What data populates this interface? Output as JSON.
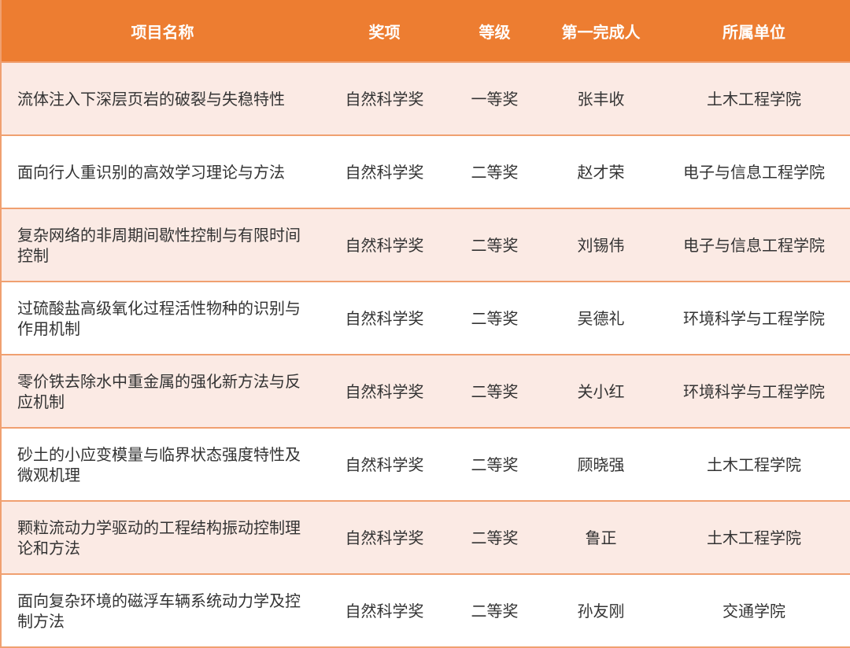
{
  "colors": {
    "header": "#ED7D31",
    "row_alt": "#FBEAE4",
    "border": "#F0A070"
  },
  "table": {
    "headers": [
      "项目名称",
      "奖项",
      "等级",
      "第一完成人",
      "所属单位"
    ],
    "rows": [
      [
        "流体注入下深层页岩的破裂与失稳特性",
        "自然科学奖",
        "一等奖",
        "张丰收",
        "土木工程学院"
      ],
      [
        "面向行人重识别的高效学习理论与方法",
        "自然科学奖",
        "二等奖",
        "赵才荣",
        "电子与信息工程学院"
      ],
      [
        "复杂网络的非周期间歇性控制与有限时间控制",
        "自然科学奖",
        "二等奖",
        "刘锡伟",
        "电子与信息工程学院"
      ],
      [
        "过硫酸盐高级氧化过程活性物种的识别与作用机制",
        "自然科学奖",
        "二等奖",
        "吴德礼",
        "环境科学与工程学院"
      ],
      [
        "零价铁去除水中重金属的强化新方法与反应机制",
        "自然科学奖",
        "二等奖",
        "关小红",
        "环境科学与工程学院"
      ],
      [
        "砂土的小应变模量与临界状态强度特性及微观机理",
        "自然科学奖",
        "二等奖",
        "顾晓强",
        "土木工程学院"
      ],
      [
        "颗粒流动力学驱动的工程结构振动控制理论和方法",
        "自然科学奖",
        "二等奖",
        "鲁正",
        "土木工程学院"
      ],
      [
        "面向复杂环境的磁浮车辆系统动力学及控制方法",
        "自然科学奖",
        "二等奖",
        "孙友刚",
        "交通学院"
      ]
    ]
  }
}
